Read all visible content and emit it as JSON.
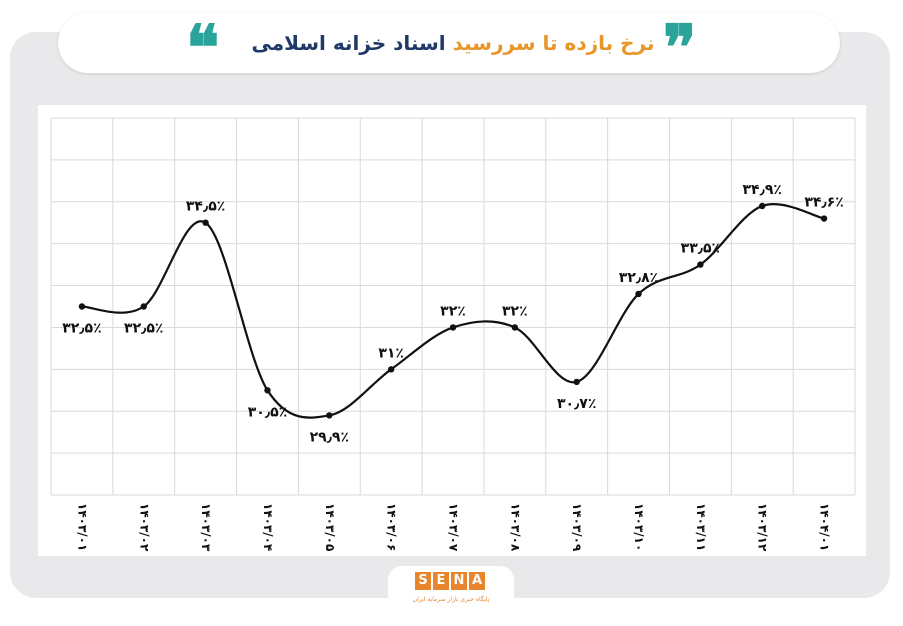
{
  "header": {
    "title_highlight": "نرخ بازده تا سررسید",
    "title_rest": "اسناد خزانه اسلامی",
    "open_quote": "❝",
    "close_quote": "❞"
  },
  "logo": {
    "letters": [
      "S",
      "E",
      "N",
      "A"
    ],
    "subtitle": "پایگاه خبری بازار سرمایه ایران"
  },
  "colors": {
    "background_frame": "#e9e9eb",
    "title_highlight": "#e8962a",
    "title_rest": "#1f3a66",
    "quote_marks": "#2aa39b",
    "line": "#111111",
    "grid": "#d9d9d9",
    "logo": "#e8842a"
  },
  "chart_data": {
    "type": "line",
    "title": "نرخ بازده تا سررسید اسناد خزانه اسلامی",
    "xlabel": "",
    "ylabel": "",
    "categories": [
      "۱۴۰۳/۰۱",
      "۱۴۰۳/۰۲",
      "۱۴۰۳/۰۳",
      "۱۴۰۳/۰۴",
      "۱۴۰۳/۰۵",
      "۱۴۰۳/۰۶",
      "۱۴۰۳/۰۷",
      "۱۴۰۳/۰۸",
      "۱۴۰۳/۰۹",
      "۱۴۰۳/۱۰",
      "۱۴۰۳/۱۱",
      "۱۴۰۳/۱۲",
      "۱۴۰۴/۰۱"
    ],
    "values": [
      32.5,
      32.5,
      34.5,
      30.5,
      29.9,
      31,
      32,
      32,
      30.7,
      32.8,
      33.5,
      34.9,
      34.6
    ],
    "data_labels": [
      "۳۲٫۵٪",
      "۳۲٫۵٪",
      "۳۴٫۵٪",
      "۳۰٫۵٪",
      "۲۹٫۹٪",
      "۳۱٪",
      "۳۲٪",
      "۳۲٪",
      "۳۰٫۷٪",
      "۳۲٫۸٪",
      "۳۳٫۵٪",
      "۳۴٫۹٪",
      "۳۴٫۶٪"
    ],
    "label_placement": [
      "below",
      "below",
      "above",
      "below",
      "below",
      "above",
      "above",
      "above",
      "below",
      "above",
      "above",
      "above",
      "above"
    ],
    "ylim": [
      28,
      37
    ],
    "grid": true,
    "smooth": true,
    "legend": "none"
  }
}
